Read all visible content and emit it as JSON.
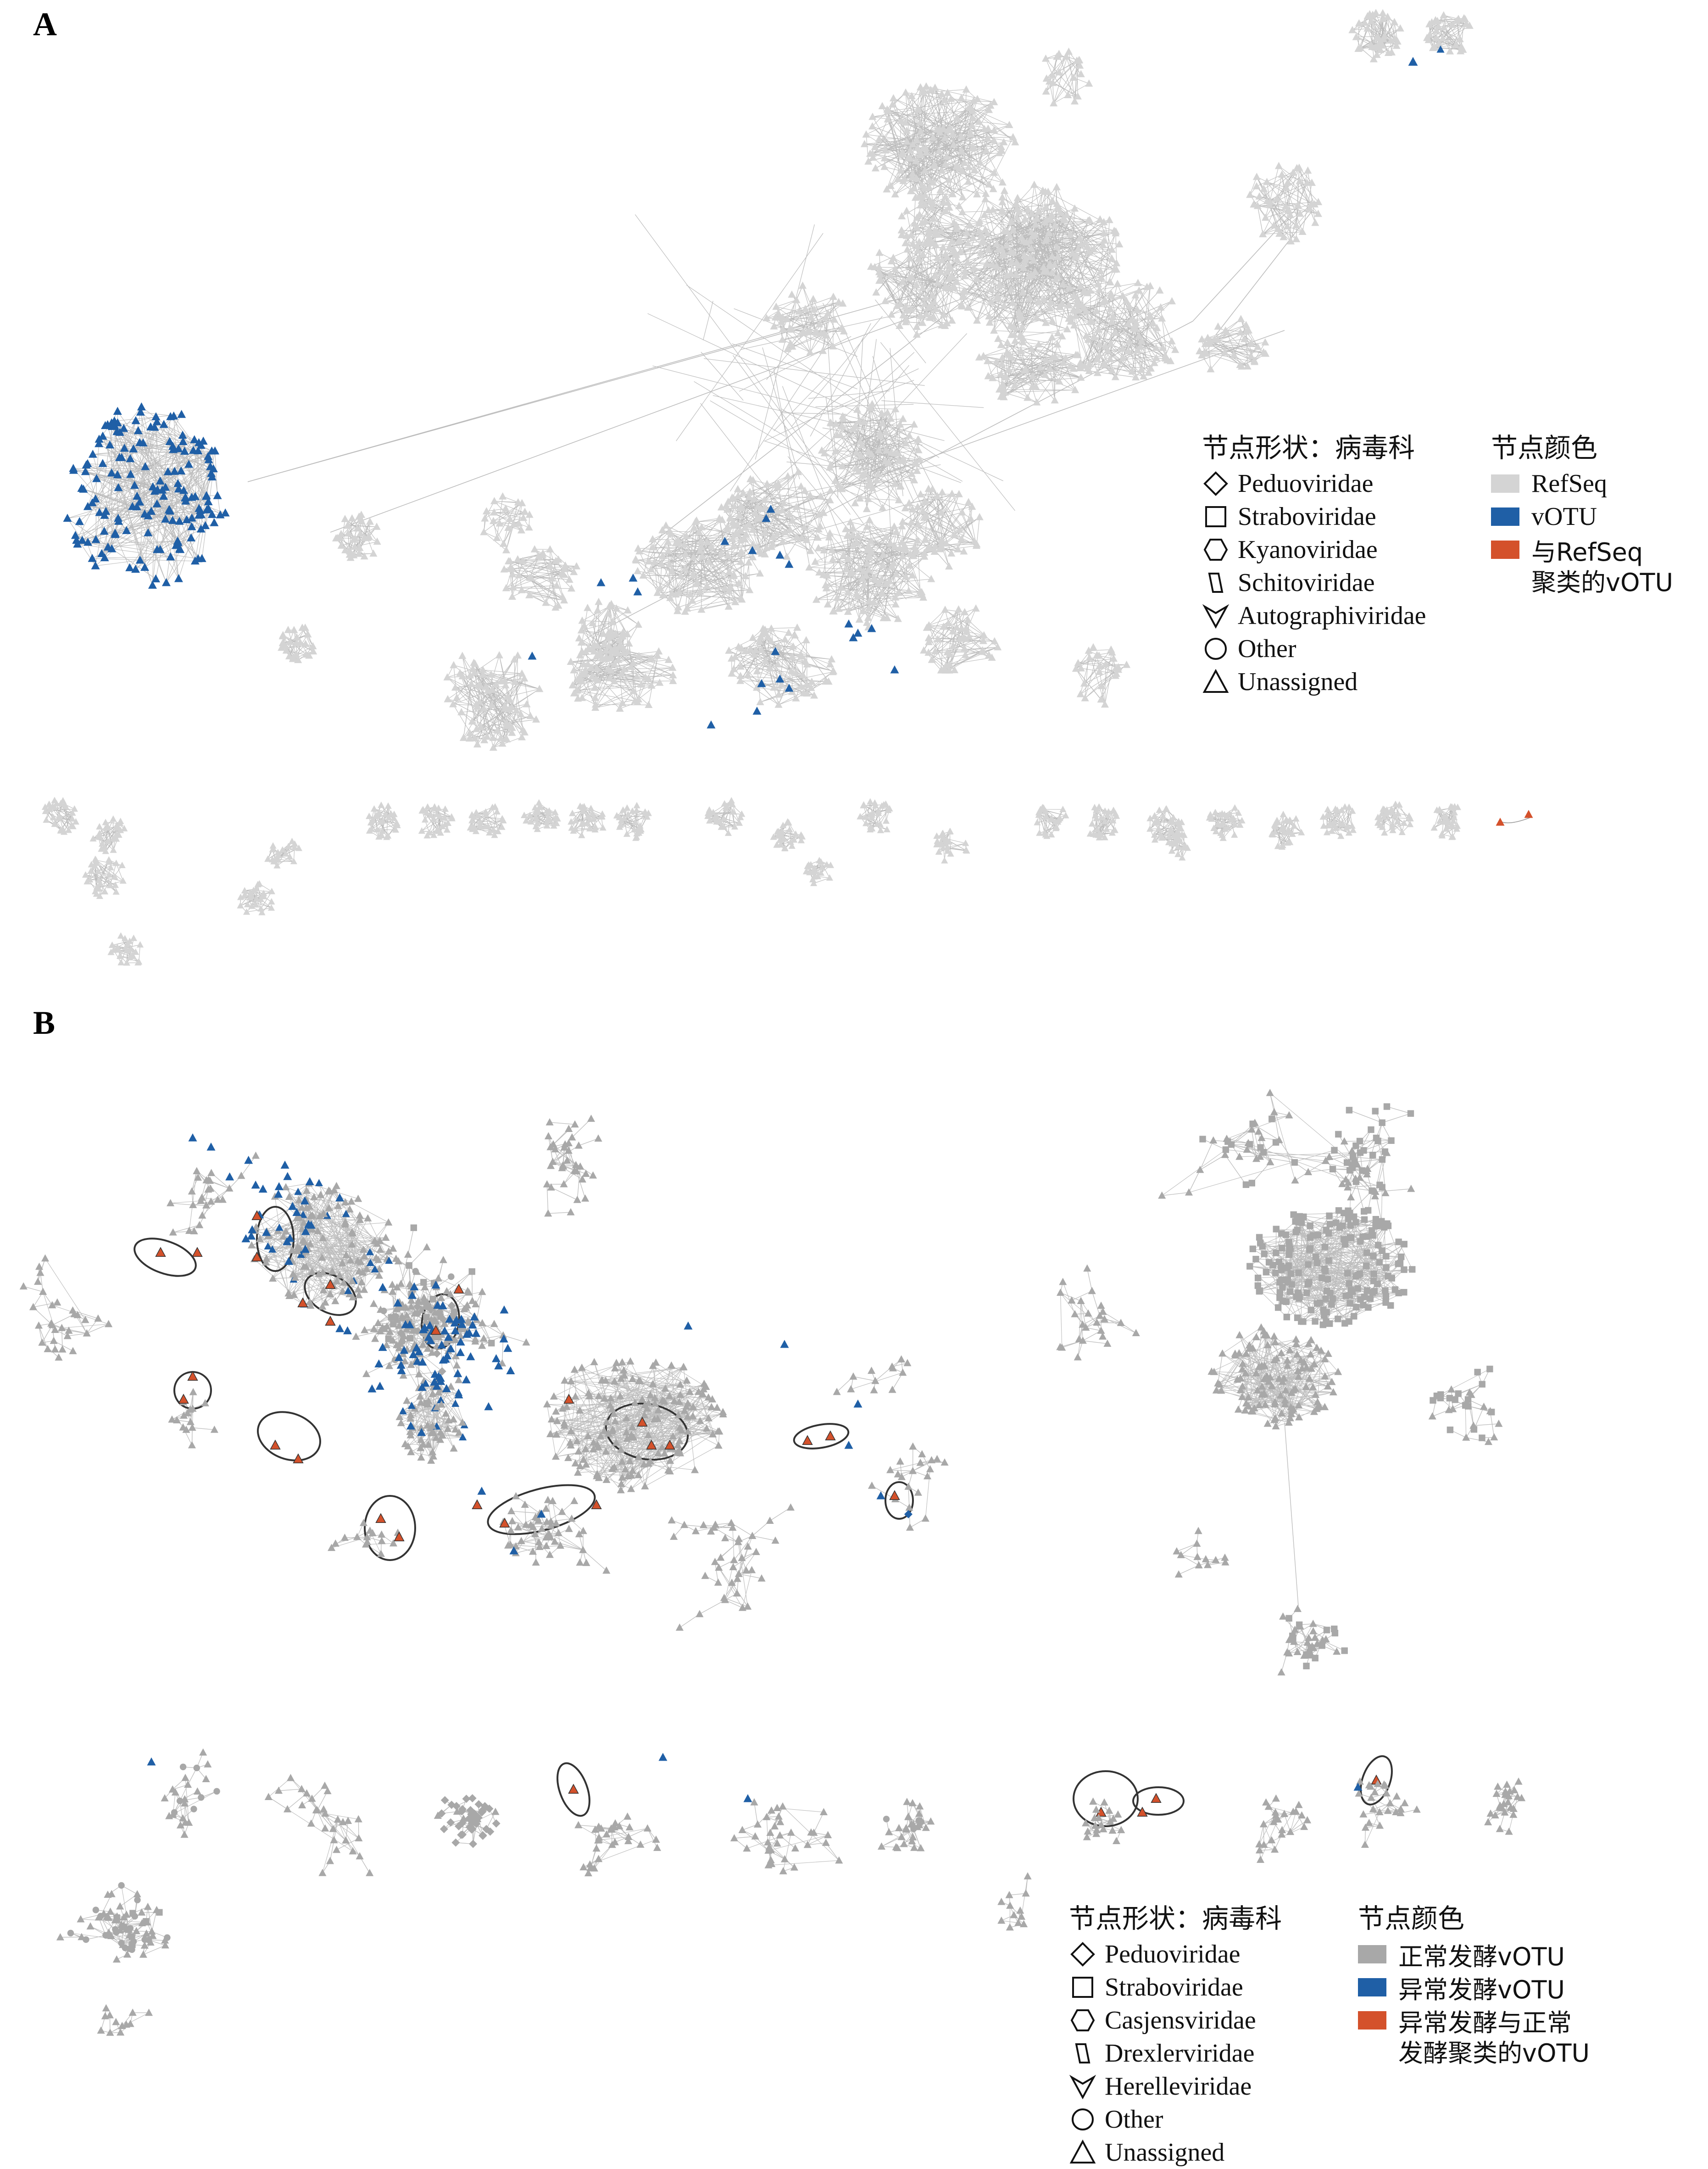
{
  "colors": {
    "refseq_gray": "#d4d4d4",
    "node_gray": "#a8a8a8",
    "edge_gray": "#bdbdbd",
    "votu_blue": "#1f5fa6",
    "cluster_red": "#d4512b"
  },
  "panel_a": {
    "letter": "A",
    "legend_shape": {
      "title": "节点形状：病毒科",
      "items": [
        {
          "icon": "diamond-icon",
          "label": "Peduoviridae"
        },
        {
          "icon": "square-icon",
          "label": "Straboviridae"
        },
        {
          "icon": "hexagon-icon",
          "label": "Kyanoviridae"
        },
        {
          "icon": "parallelogram-icon",
          "label": "Schitoviridae"
        },
        {
          "icon": "v-shape-icon",
          "label": "Autographiviridae"
        },
        {
          "icon": "circle-icon",
          "label": "Other"
        },
        {
          "icon": "triangle-icon",
          "label": "Unassigned"
        }
      ]
    },
    "legend_color": {
      "title": "节点颜色",
      "items": [
        {
          "color": "#d4d4d4",
          "label": "RefSeq"
        },
        {
          "color": "#1f5fa6",
          "label": "vOTU"
        },
        {
          "color": "#d4512b",
          "label": "与RefSeq",
          "label2": "聚类的vOTU"
        }
      ]
    }
  },
  "panel_b": {
    "letter": "B",
    "legend_shape": {
      "title": "节点形状：病毒科",
      "items": [
        {
          "icon": "diamond-icon",
          "label": "Peduoviridae"
        },
        {
          "icon": "square-icon",
          "label": "Straboviridae"
        },
        {
          "icon": "hexagon-icon",
          "label": "Casjensviridae"
        },
        {
          "icon": "parallelogram-icon",
          "label": "Drexlerviridae"
        },
        {
          "icon": "v-shape-icon",
          "label": "Herelleviridae"
        },
        {
          "icon": "circle-icon",
          "label": "Other"
        },
        {
          "icon": "triangle-icon",
          "label": "Unassigned"
        }
      ]
    },
    "legend_color": {
      "title": "节点颜色",
      "items": [
        {
          "color": "#a8a8a8",
          "label": "正常发酵vOTU"
        },
        {
          "color": "#1f5fa6",
          "label": "异常发酵vOTU"
        },
        {
          "color": "#d4512b",
          "label": "异常发酵与正常",
          "label2": "发酵聚类的vOTU"
        }
      ]
    }
  }
}
